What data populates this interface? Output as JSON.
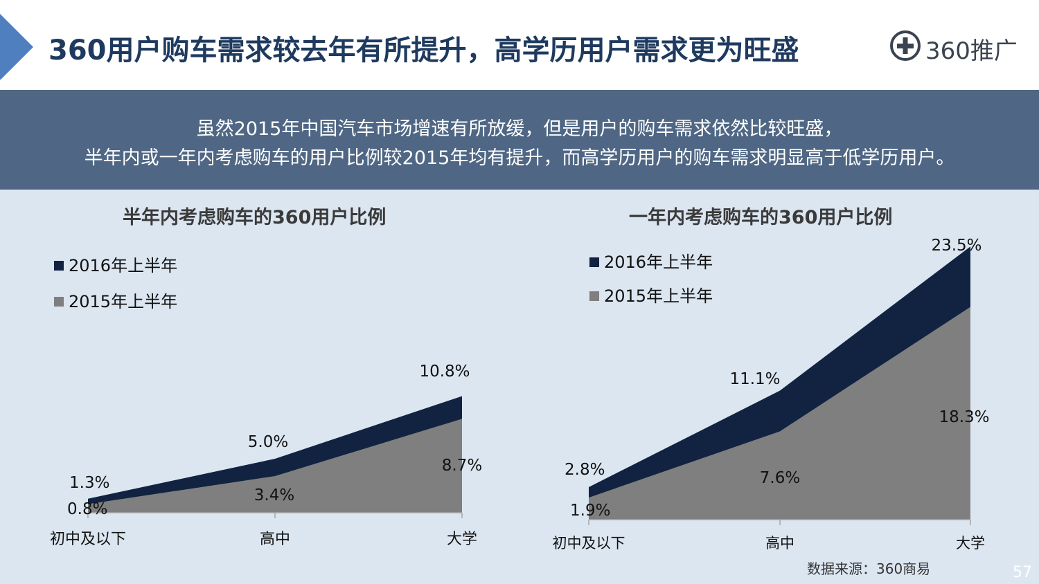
{
  "header": {
    "title": "360用户购车需求较去年有所提升，高学历用户需求更为旺盛",
    "logo_text": "360推广",
    "accent_color": "#4f7fbf"
  },
  "banner": {
    "line1": "虽然2015年中国汽车市场增速有所放缓，但是用户的购车需求依然比较旺盛，",
    "line2": "半年内或一年内考虑购车的用户比例较2015年均有提升，而高学历用户的购车需求明显高于低学历用户。"
  },
  "chart_data": [
    {
      "type": "area",
      "title": "半年内考虑购车的360用户比例",
      "categories": [
        "初中及以下",
        "高中",
        "大学"
      ],
      "series": [
        {
          "name": "2016年上半年",
          "values": [
            1.3,
            5.0,
            10.8
          ],
          "labels": [
            "1.3%",
            "5.0%",
            "10.8%"
          ],
          "color": "#112341"
        },
        {
          "name": "2015年上半年",
          "values": [
            0.8,
            3.4,
            8.7
          ],
          "labels": [
            "0.8%",
            "3.4%",
            "8.7%"
          ],
          "color": "#7f7f7f"
        }
      ],
      "ylim": [
        0,
        11
      ],
      "legend": "top-left"
    },
    {
      "type": "area",
      "title": "一年内考虑购车的360用户比例",
      "categories": [
        "初中及以下",
        "高中",
        "大学"
      ],
      "series": [
        {
          "name": "2016年上半年",
          "values": [
            2.8,
            11.1,
            23.5
          ],
          "labels": [
            "2.8%",
            "11.1%",
            "23.5%"
          ],
          "color": "#112341"
        },
        {
          "name": "2015年上半年",
          "values": [
            1.9,
            7.6,
            18.3
          ],
          "labels": [
            "1.9%",
            "7.6%",
            "18.3%"
          ],
          "color": "#7f7f7f"
        }
      ],
      "ylim": [
        0,
        23.5
      ],
      "legend": "top-left"
    }
  ],
  "footer": {
    "source": "数据来源：360商易",
    "page_number": "57"
  }
}
